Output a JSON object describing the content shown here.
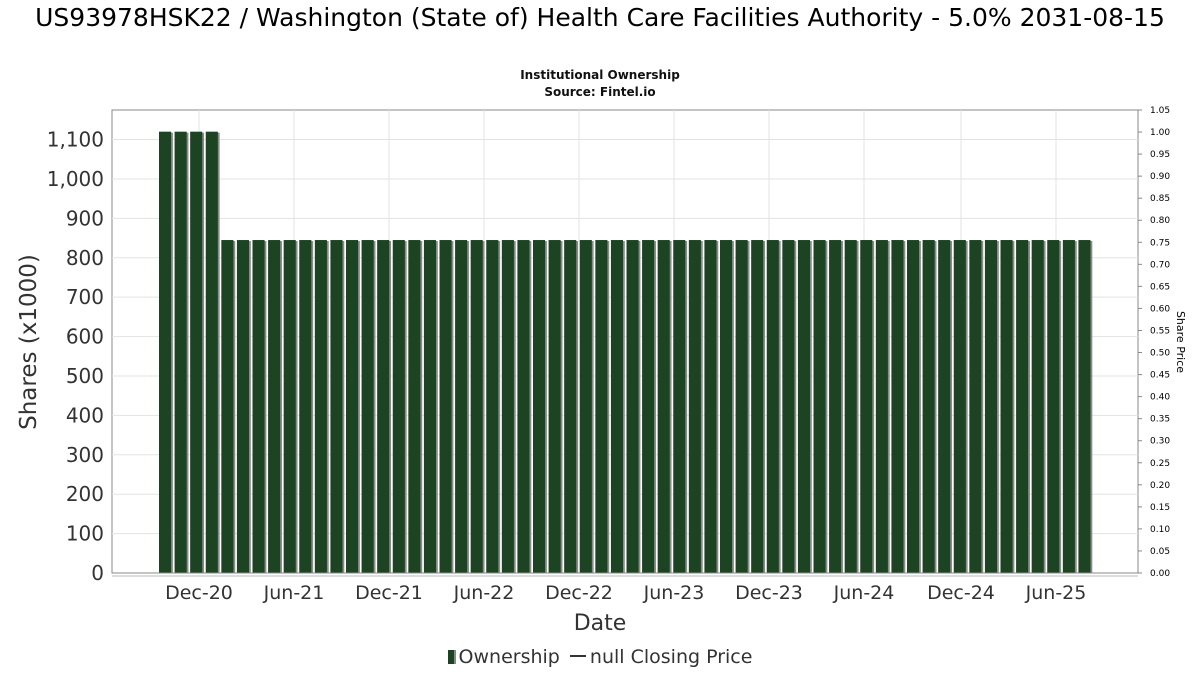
{
  "chart_data": {
    "type": "bar",
    "title": "US93978HSK22 / Washington (State of) Health Care Facilities Authority - 5.0% 2031-08-15",
    "subtitle": "Institutional Ownership",
    "source": "Source: Fintel.io",
    "xlabel": "Date",
    "ylabel": "Shares (x1000)",
    "y2label": "Share Price",
    "ylim": [
      0,
      1175
    ],
    "y2lim": [
      0,
      1.05
    ],
    "yticks": [
      "0",
      "100",
      "200",
      "300",
      "400",
      "500",
      "600",
      "700",
      "800",
      "900",
      "1,000",
      "1,100"
    ],
    "y2ticks": [
      "0.00",
      "0.05",
      "0.10",
      "0.15",
      "0.20",
      "0.25",
      "0.30",
      "0.35",
      "0.40",
      "0.45",
      "0.50",
      "0.55",
      "0.60",
      "0.65",
      "0.70",
      "0.75",
      "0.80",
      "0.85",
      "0.90",
      "0.95",
      "1.00",
      "1.05"
    ],
    "xticks": [
      "Dec-20",
      "Jun-21",
      "Dec-21",
      "Jun-22",
      "Dec-22",
      "Jun-23",
      "Dec-23",
      "Jun-24",
      "Dec-24",
      "Jun-25"
    ],
    "grid": true,
    "legend_position": "bottom",
    "series": [
      {
        "name": "Ownership",
        "color": "#1c4423",
        "values": [
          1120,
          1120,
          1120,
          1120,
          845,
          845,
          845,
          845,
          845,
          845,
          845,
          845,
          845,
          845,
          845,
          845,
          845,
          845,
          845,
          845,
          845,
          845,
          845,
          845,
          845,
          845,
          845,
          845,
          845,
          845,
          845,
          845,
          845,
          845,
          845,
          845,
          845,
          845,
          845,
          845,
          845,
          845,
          845,
          845,
          845,
          845,
          845,
          845,
          845,
          845,
          845,
          845,
          845,
          845,
          845,
          845,
          845,
          845,
          845,
          845
        ]
      },
      {
        "name": "null Closing Price",
        "color": "#333333",
        "values": []
      }
    ]
  }
}
